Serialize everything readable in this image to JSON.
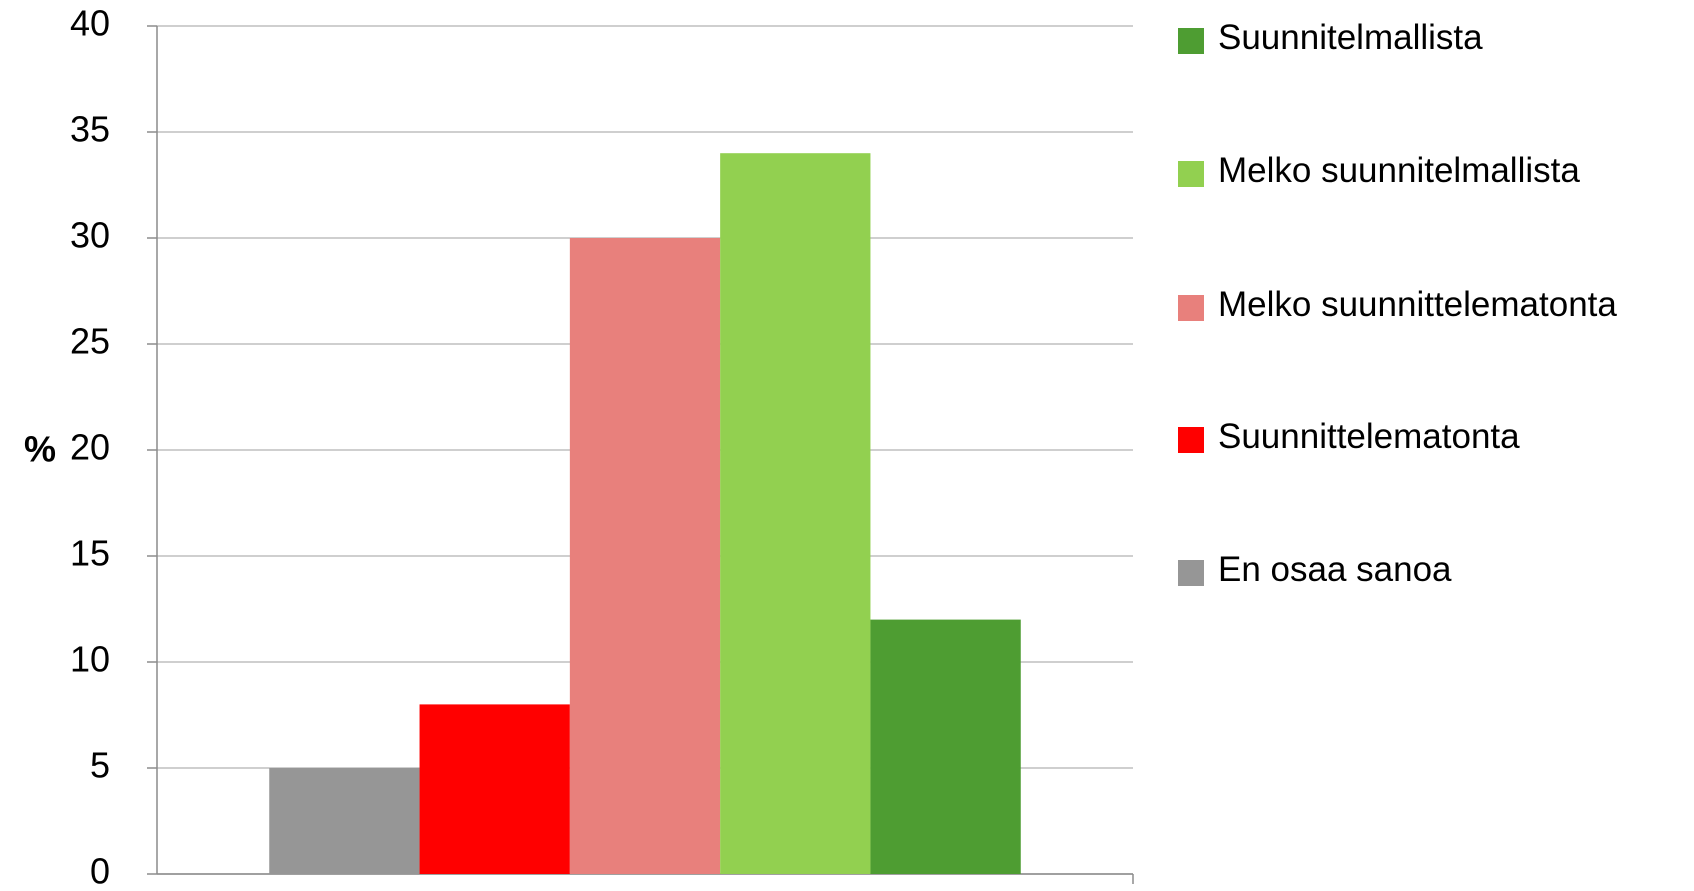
{
  "chart_data": {
    "type": "bar",
    "y_label": "%",
    "categories": [
      null
    ],
    "series": [
      {
        "name": "En osaa sanoa",
        "color": "#969696",
        "values": [
          5
        ]
      },
      {
        "name": "Suunnittelematonta",
        "color": "#ff0000",
        "values": [
          8
        ]
      },
      {
        "name": "Melko suunnittelematonta",
        "color": "#e8807c",
        "values": [
          30
        ]
      },
      {
        "name": "Melko suunnitelmallista",
        "color": "#92d050",
        "values": [
          34
        ]
      },
      {
        "name": "Suunnitelmallista",
        "color": "#4e9d32",
        "values": [
          12
        ]
      }
    ],
    "ylim": [
      0,
      40
    ],
    "yticks": [
      0,
      5,
      10,
      15,
      20,
      25,
      30,
      35,
      40
    ],
    "grid": true,
    "legend": "right"
  }
}
